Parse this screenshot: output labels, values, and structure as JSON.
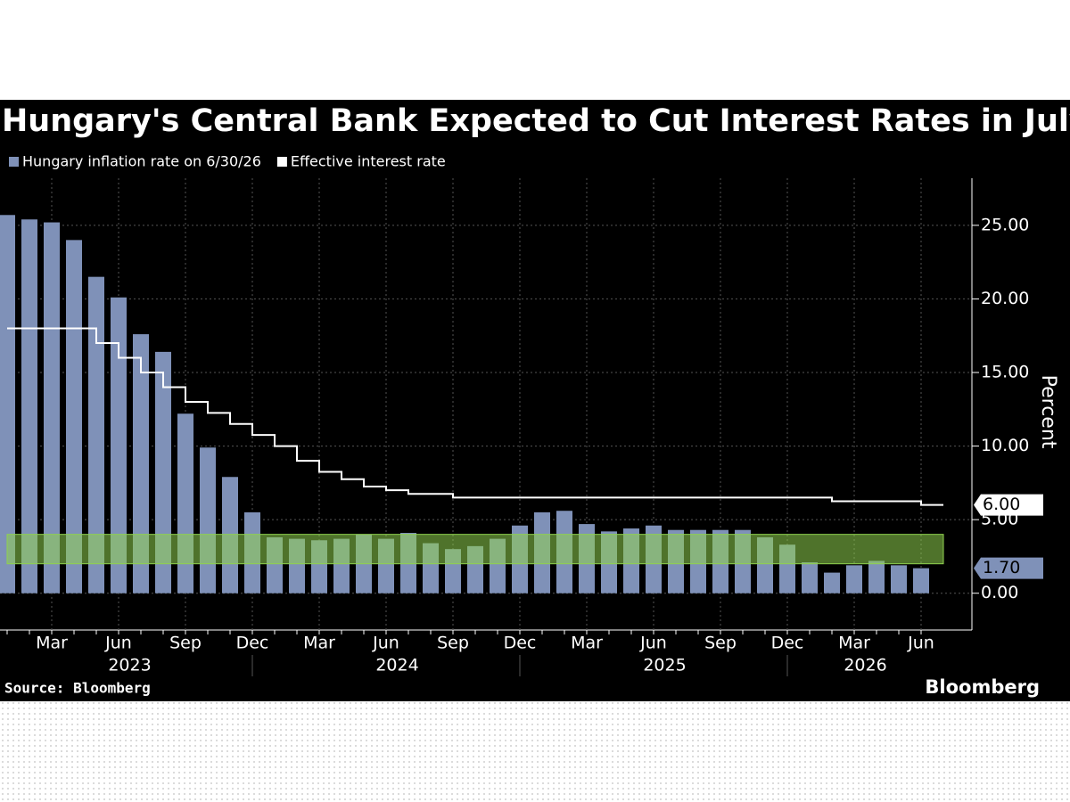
{
  "chart_data": {
    "type": "bar-step",
    "title": "Hungary's Central Bank Expected to Cut Interest Rates in July",
    "y_label": "Percent",
    "source": "Source: Bloomberg",
    "brand": "Bloomberg",
    "categories": [
      null,
      null,
      "Mar",
      null,
      null,
      "Jun",
      null,
      null,
      "Sep",
      null,
      null,
      "Dec",
      null,
      null,
      "Mar",
      null,
      null,
      "Jun",
      null,
      null,
      "Sep",
      null,
      null,
      "Dec",
      null,
      null,
      "Mar",
      null,
      null,
      "Jun",
      null,
      null,
      "Sep",
      null,
      null,
      "Dec",
      null,
      null,
      "Mar",
      null,
      null,
      "Jun"
    ],
    "year_labels": [
      "2023",
      "2024",
      "2025",
      "2026"
    ],
    "series": [
      {
        "name": "Hungary inflation rate on 6/30/26",
        "kind": "bar",
        "color": "#7f91b8",
        "values": [
          25.7,
          25.4,
          25.2,
          24.0,
          21.5,
          20.1,
          17.6,
          16.4,
          12.2,
          9.9,
          7.9,
          5.5,
          3.8,
          3.7,
          3.6,
          3.7,
          4.0,
          3.7,
          4.1,
          3.4,
          3.0,
          3.2,
          3.7,
          4.6,
          5.5,
          5.6,
          4.7,
          4.2,
          4.4,
          4.6,
          4.3,
          4.3,
          4.3,
          4.3,
          3.8,
          3.3,
          2.1,
          1.4,
          1.9,
          2.2,
          1.9,
          1.7
        ],
        "value_labels": [
          null,
          null,
          null,
          null,
          null,
          null,
          null,
          null,
          null,
          null,
          null,
          null,
          null,
          null,
          null,
          null,
          null,
          null,
          null,
          null,
          null,
          null,
          null,
          null,
          null,
          null,
          null,
          null,
          null,
          null,
          null,
          null,
          null,
          null,
          null,
          null,
          null,
          null,
          null,
          null,
          null,
          "1.70"
        ]
      },
      {
        "name": "Effective interest rate",
        "kind": "step",
        "color": "#ffffff",
        "values": [
          18,
          18,
          18,
          18,
          17,
          16,
          15,
          14,
          13,
          12.25,
          11.5,
          10.75,
          10,
          9,
          8.25,
          7.75,
          7.25,
          7,
          6.75,
          6.75,
          6.5,
          6.5,
          6.5,
          6.5,
          6.5,
          6.5,
          6.5,
          6.5,
          6.5,
          6.5,
          6.5,
          6.5,
          6.5,
          6.5,
          6.5,
          6.5,
          6.5,
          6.25,
          6.25,
          6.25,
          6.25,
          6.0
        ],
        "value_labels": [
          null,
          null,
          null,
          null,
          null,
          null,
          null,
          null,
          null,
          null,
          null,
          null,
          null,
          null,
          null,
          null,
          null,
          null,
          null,
          null,
          null,
          null,
          null,
          null,
          null,
          null,
          null,
          null,
          null,
          null,
          null,
          null,
          null,
          null,
          null,
          null,
          null,
          null,
          null,
          null,
          null,
          "6.00"
        ]
      }
    ],
    "target_band": [
      2,
      4
    ],
    "target_band_color": "#8fd14f",
    "ylim": [
      -2.5,
      28.2
    ],
    "yticks": [
      {
        "value": 0,
        "label": "0.00"
      },
      {
        "value": 5,
        "label": "5.00"
      },
      {
        "value": 10,
        "label": "10.00"
      },
      {
        "value": 15,
        "label": "15.00"
      },
      {
        "value": 20,
        "label": "20.00"
      },
      {
        "value": 25,
        "label": "25.00"
      }
    ],
    "grid": true
  }
}
